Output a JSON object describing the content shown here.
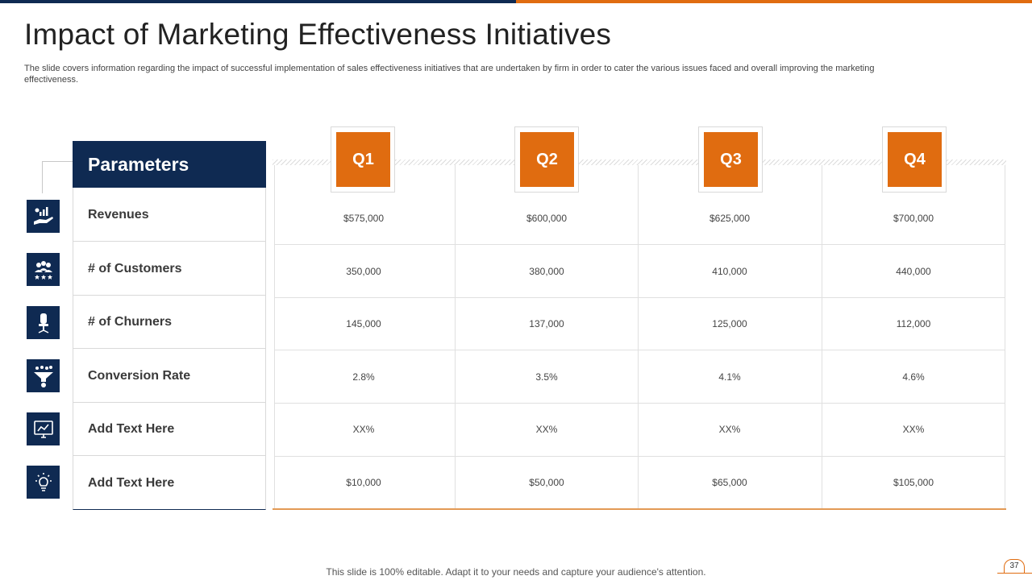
{
  "slide": {
    "title": "Impact of Marketing Effectiveness Initiatives",
    "subtitle": "The slide covers information regarding the impact of successful implementation of sales effectiveness initiatives that are undertaken by firm in order to cater the various issues faced and overall improving the marketing effectiveness.",
    "footer": "This slide is 100% editable. Adapt it to your needs and capture your audience's attention.",
    "page_number": "37",
    "colors": {
      "navy": "#0f2a52",
      "orange": "#e06c10"
    }
  },
  "table": {
    "header": "Parameters",
    "quarters": [
      "Q1",
      "Q2",
      "Q3",
      "Q4"
    ],
    "rows": [
      {
        "label": "Revenues",
        "icon": "hand-chart-icon",
        "values": [
          "$575,000",
          "$600,000",
          "$625,000",
          "$700,000"
        ]
      },
      {
        "label": "# of Customers",
        "icon": "customers-icon",
        "values": [
          "350,000",
          "380,000",
          "410,000",
          "440,000"
        ]
      },
      {
        "label": "# of Churners",
        "icon": "office-chair-icon",
        "values": [
          "145,000",
          "137,000",
          "125,000",
          "112,000"
        ]
      },
      {
        "label": "Conversion Rate",
        "icon": "funnel-icon",
        "values": [
          "2.8%",
          "3.5%",
          "4.1%",
          "4.6%"
        ]
      },
      {
        "label": "Add  Text Here",
        "icon": "monitor-icon",
        "values": [
          "XX%",
          "XX%",
          "XX%",
          "XX%"
        ]
      },
      {
        "label": "Add  Text Here",
        "icon": "lightbulb-icon",
        "values": [
          "$10,000",
          "$50,000",
          "$65,000",
          "$105,000"
        ]
      }
    ]
  }
}
